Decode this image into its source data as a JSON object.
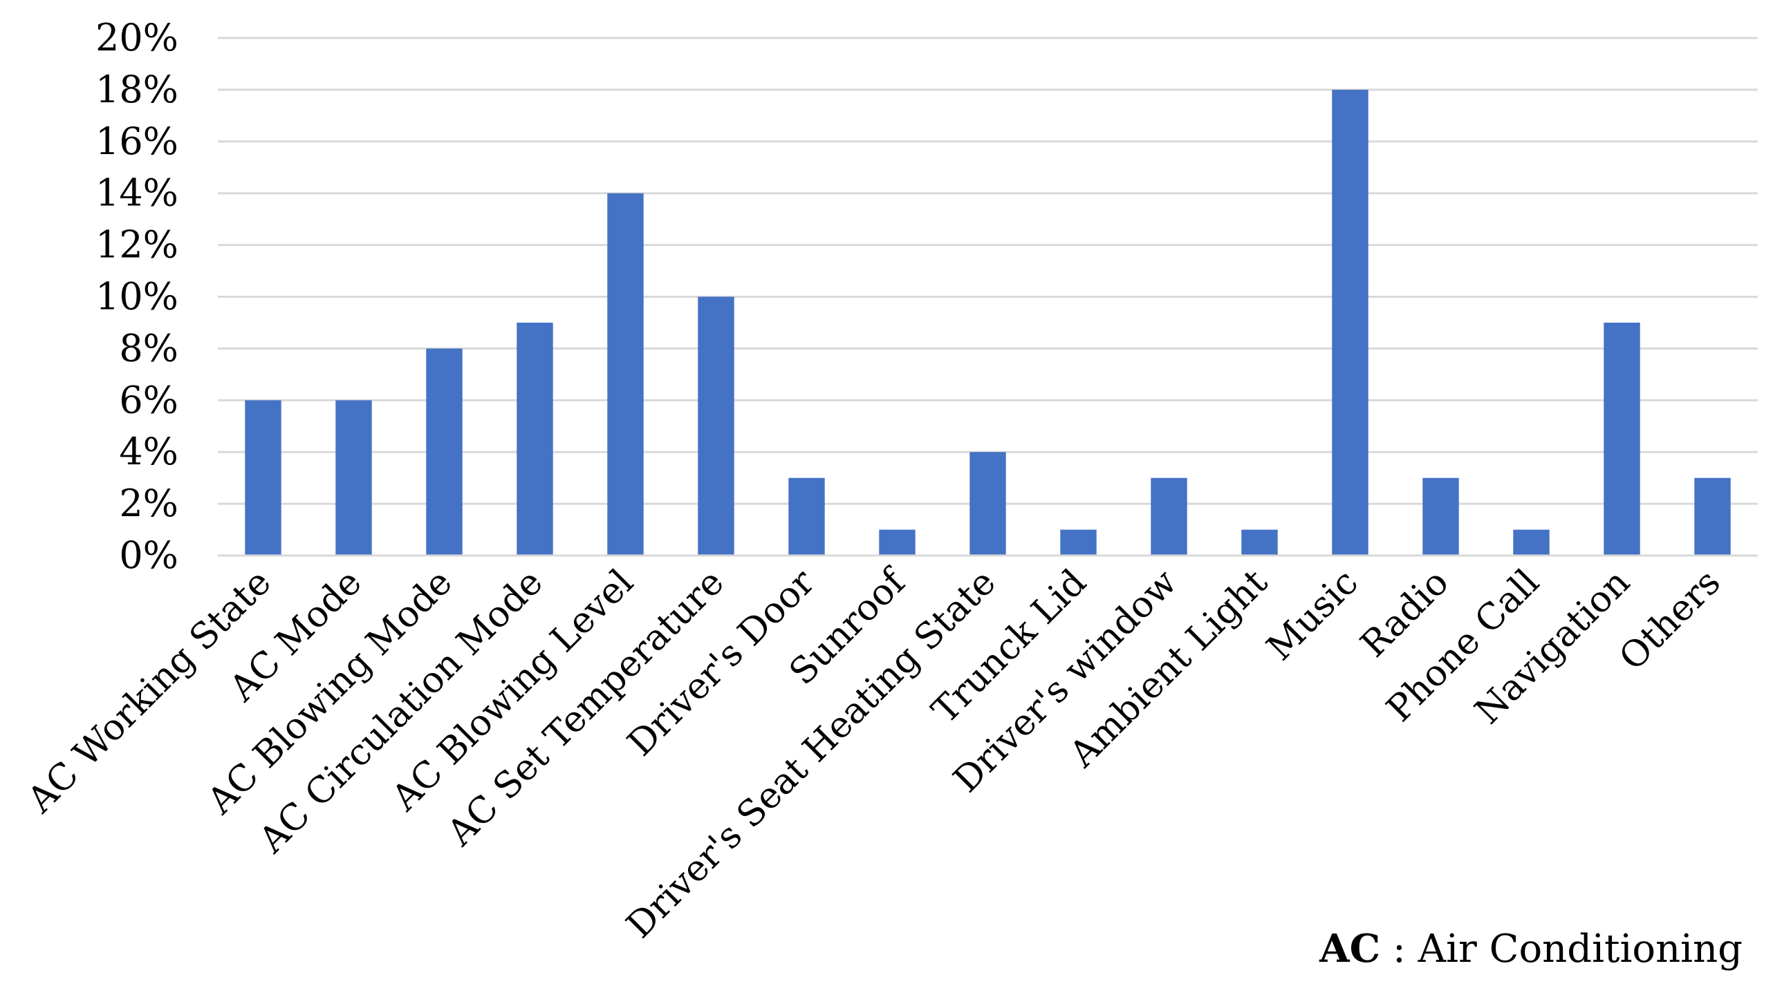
{
  "chart_data": {
    "type": "bar",
    "title": "",
    "xlabel": "",
    "ylabel": "",
    "categories": [
      "AC Working State",
      "AC Mode",
      "AC Blowing Mode",
      "AC Circulation Mode",
      "AC Blowing Level",
      "AC Set Temperature",
      "Driver's Door",
      "Sunroof",
      "Driver's Seat Heating State",
      "Trunck Lid",
      "Driver's window",
      "Ambient Light",
      "Music",
      "Radio",
      "Phone Call",
      "Navigation",
      "Others"
    ],
    "values": [
      6,
      6,
      8,
      9,
      14,
      10,
      3,
      1,
      4,
      1,
      3,
      1,
      18,
      3,
      1,
      9,
      3
    ],
    "ylim": [
      0,
      20
    ],
    "yticks": [
      "0%",
      "2%",
      "4%",
      "6%",
      "8%",
      "10%",
      "12%",
      "14%",
      "16%",
      "18%",
      "20%"
    ],
    "grid": true,
    "legend": "none",
    "bar_color": "#4472C4",
    "grid_color": "#D9D9D9"
  },
  "footnote": {
    "abbr": "AC",
    "text": " : Air Conditioning"
  }
}
